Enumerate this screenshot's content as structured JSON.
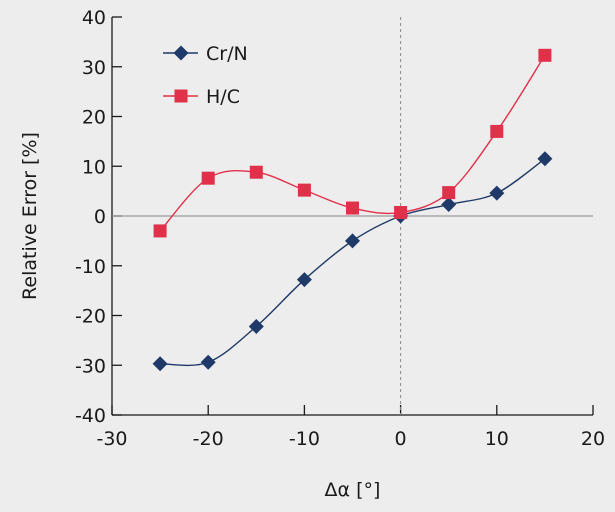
{
  "chart_data": {
    "type": "line",
    "xlabel": "Δα [°]",
    "ylabel": "Relative Error [%]",
    "xlim": [
      -30,
      20
    ],
    "ylim": [
      -40,
      40
    ],
    "x_ticks": [
      "-30",
      "-20",
      "-10",
      "0",
      "10",
      "20"
    ],
    "y_ticks": [
      "-40",
      "-30",
      "-20",
      "-10",
      "0",
      "10",
      "20",
      "30",
      "40"
    ],
    "grid": false,
    "legend": "top-left",
    "reference_lines": {
      "y_zero": true,
      "x_zero_dashed": true
    },
    "series": [
      {
        "name": "Cr/N",
        "marker": "diamond",
        "color": "#1f3a68",
        "x": [
          -25,
          -20,
          -15,
          -10,
          -5,
          0,
          5,
          10,
          15
        ],
        "y": [
          -29.7,
          -29.4,
          -22.2,
          -12.8,
          -5.0,
          0.0,
          2.3,
          4.6,
          11.5
        ]
      },
      {
        "name": "H/C",
        "marker": "square",
        "color": "#e0304a",
        "x": [
          -25,
          -20,
          -15,
          -10,
          -5,
          0,
          5,
          10,
          15
        ],
        "y": [
          -3.0,
          7.6,
          8.8,
          5.2,
          1.6,
          0.7,
          4.7,
          17.0,
          32.3
        ]
      }
    ]
  }
}
